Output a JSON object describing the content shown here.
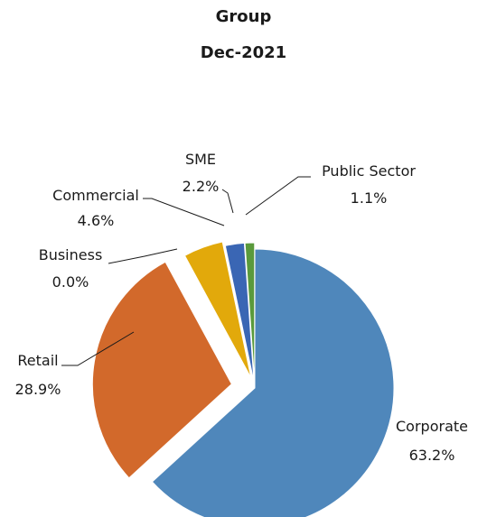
{
  "chart_data": {
    "type": "pie",
    "title": "Group",
    "subtitle": "Dec-2021",
    "slices": [
      {
        "label": "Corporate",
        "value": 63.2,
        "display": "63.2%",
        "color": "#4f87bb"
      },
      {
        "label": "Retail",
        "value": 28.9,
        "display": "28.9%",
        "color": "#d2692b"
      },
      {
        "label": "Business",
        "value": 0.0,
        "display": "0.0%",
        "color": "#9e9e9e"
      },
      {
        "label": "Commercial",
        "value": 4.6,
        "display": "4.6%",
        "color": "#e2a90b"
      },
      {
        "label": "SME",
        "value": 2.2,
        "display": "2.2%",
        "color": "#3a66b4"
      },
      {
        "label": "Public Sector",
        "value": 1.1,
        "display": "1.1%",
        "color": "#5a9a3c"
      }
    ],
    "legend": "none"
  }
}
